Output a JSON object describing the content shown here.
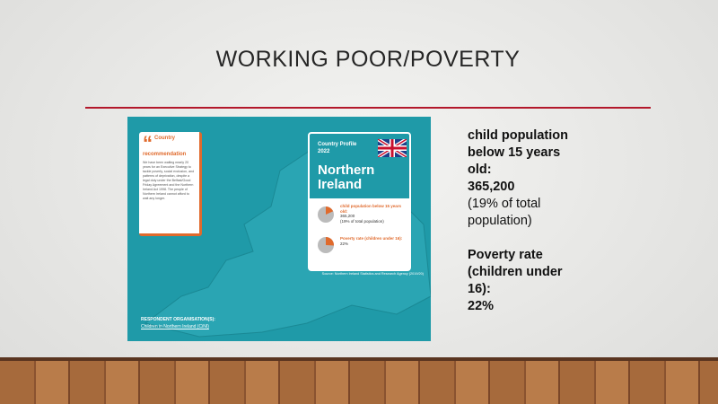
{
  "title": "WORKING POOR/POVERTY",
  "infographic": {
    "quote_box": {
      "heading": "Country recommendation",
      "text": "We have been waiting nearly 20 years for an Executive Strategy to tackle poverty, social exclusion, and patterns of deprivation, despite a legal duty under the Belfast/Good Friday Agreement and the Northern Ireland Act 1998. The people of Northern Ireland cannot afford to wait any longer."
    },
    "profile": {
      "label": "Country Profile 2022",
      "country": "Northern Ireland",
      "stats": [
        {
          "text": "child population below 15 years old:",
          "value": "365,200",
          "note": "(19% of total population)"
        },
        {
          "text": "Poverty rate (children under 16):",
          "value": "22%"
        }
      ],
      "source": "Source: Northern Ireland Statistics and Research Agency (2019/20)"
    },
    "footer": {
      "label": "RESPONDENT ORGANISATION(S):",
      "org": "Children in Northern Ireland (CiNI)"
    }
  },
  "side_text": {
    "stat1_label": "child population below 15 years old:",
    "stat1_value": "365,200",
    "stat1_note": "(19% of total population)",
    "stat2_label": "Poverty rate (children under 16):",
    "stat2_value": "22%"
  }
}
